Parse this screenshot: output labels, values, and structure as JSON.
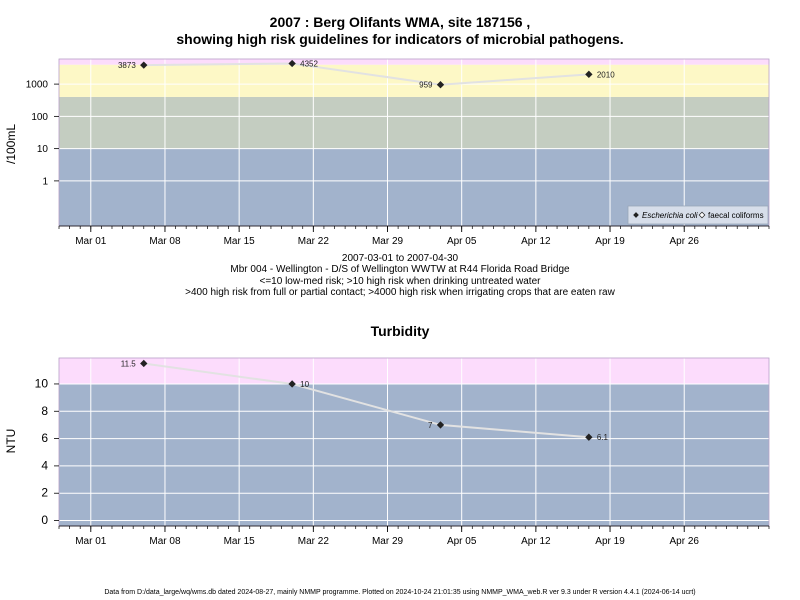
{
  "header": {
    "title_line1": "2007 : Berg Olifants WMA, site 187156 ,",
    "title_line2": "showing high risk guidelines for indicators of microbial pathogens."
  },
  "caption": {
    "date_range": "2007-03-01 to 2007-04-30",
    "site": "Mbr 004 - Wellington - D/S of Wellington WWTW at R44 Florida Road Bridge",
    "guide1": "<=10 low-med risk; >10 high risk when drinking untreated water",
    "guide2": ">400 high risk from full or partial contact; >4000 high risk when irrigating crops that are eaten raw"
  },
  "footer": "Data from D:/data_large/wq/wms.db dated 2024-08-27, mainly NMMP programme. Plotted on 2024-10-24 21:01:35 using NMMP_WMA_web.R ver 9.3 under R version 4.4.1 (2024-06-14 ucrt)",
  "colors": {
    "band_blue": "#a2b3cc",
    "band_gray": "#c4cdc1",
    "band_yellow": "#fdf8c6",
    "band_pink": "#fcdcfc",
    "line": "#e2e2e2",
    "point": "#222222"
  },
  "chart_data": [
    {
      "type": "line",
      "title": "",
      "ylabel": "/100mL",
      "yscale": "log",
      "xlim": [
        "2007-02-26",
        "2007-05-04"
      ],
      "ylim": [
        0.04,
        6000
      ],
      "grid": true,
      "x_ticks": [
        "Mar 01",
        "Mar 08",
        "Mar 15",
        "Mar 22",
        "Mar 29",
        "Apr 05",
        "Apr 12",
        "Apr 19",
        "Apr 26"
      ],
      "y_ticks": [
        "1",
        "10",
        "100",
        "1000"
      ],
      "bands": [
        {
          "from": 0.04,
          "to": 10,
          "color": "#a2b3cc"
        },
        {
          "from": 10,
          "to": 400,
          "color": "#c4cdc1"
        },
        {
          "from": 400,
          "to": 4000,
          "color": "#fdf8c6"
        },
        {
          "from": 4000,
          "to": 6000,
          "color": "#fcdcfc"
        }
      ],
      "legend": {
        "position": "bottom-right",
        "items": [
          "Escherichia coli",
          "faecal coliforms"
        ]
      },
      "series": [
        {
          "name": "Escherichia coli",
          "points": [
            {
              "x": "2007-03-06",
              "y": 3873,
              "label": "3873"
            },
            {
              "x": "2007-03-20",
              "y": 4352,
              "label": "4352"
            },
            {
              "x": "2007-04-03",
              "y": 959,
              "label": "959"
            },
            {
              "x": "2007-04-17",
              "y": 2010,
              "label": "2010"
            }
          ]
        }
      ]
    },
    {
      "type": "line",
      "title": "Turbidity",
      "ylabel": "NTU",
      "xlim": [
        "2007-02-26",
        "2007-05-04"
      ],
      "ylim": [
        -0.4,
        11.9
      ],
      "grid": true,
      "x_ticks": [
        "Mar 01",
        "Mar 08",
        "Mar 15",
        "Mar 22",
        "Mar 29",
        "Apr 05",
        "Apr 12",
        "Apr 19",
        "Apr 26"
      ],
      "y_ticks": [
        "0",
        "2",
        "4",
        "6",
        "8",
        "10"
      ],
      "bands": [
        {
          "from": -0.4,
          "to": 10,
          "color": "#a2b3cc"
        },
        {
          "from": 10,
          "to": 11.9,
          "color": "#fcdcfc"
        }
      ],
      "series": [
        {
          "points": [
            {
              "x": "2007-03-06",
              "y": 11.5,
              "label": "11.5"
            },
            {
              "x": "2007-03-20",
              "y": 10,
              "label": "10"
            },
            {
              "x": "2007-04-03",
              "y": 7,
              "label": "7"
            },
            {
              "x": "2007-04-17",
              "y": 6.1,
              "label": "6.1"
            }
          ]
        }
      ]
    }
  ]
}
